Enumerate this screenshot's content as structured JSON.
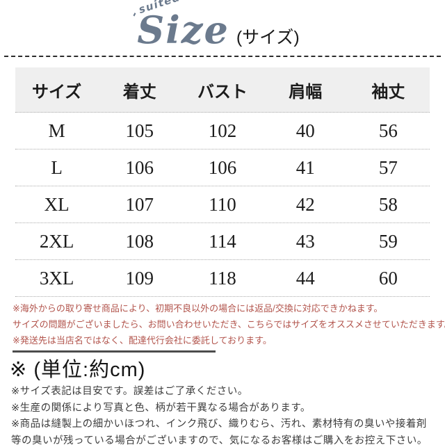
{
  "header": {
    "decoration": {
      "left_tick": "-",
      "word": "suited",
      "right_tick": "/"
    },
    "title": "Size",
    "subtitle": "(サイズ)",
    "title_color": "#6b7a8d"
  },
  "size_table": {
    "header_background": "#efefef",
    "columns": [
      "サイズ",
      "着丈",
      "バスト",
      "肩幅",
      "袖丈"
    ],
    "rows": [
      {
        "size": "M",
        "values": [
          "105",
          "102",
          "40",
          "56"
        ]
      },
      {
        "size": "L",
        "values": [
          "106",
          "106",
          "41",
          "57"
        ]
      },
      {
        "size": "XL",
        "values": [
          "107",
          "110",
          "42",
          "58"
        ]
      },
      {
        "size": "2XL",
        "values": [
          "108",
          "114",
          "43",
          "59"
        ]
      },
      {
        "size": "3XL",
        "values": [
          "109",
          "118",
          "44",
          "60"
        ]
      }
    ]
  },
  "red_notices": {
    "color": "#b2544c",
    "lines": [
      "※海外からの取り寄せ商品により、初期不良以外の場合には返品/交換に対応できかねます。",
      "サイズの問題がございましたら、お問い合わせいただき、こちらではサイズをオススメさせていただきます。",
      "※発送先は当店名ではなく、配達代行会社に委託しております。"
    ]
  },
  "unit_heading": "※ (単位:約cm)",
  "gray_notices": {
    "lines": [
      "※サイズ表記は目安です。誤差はご了承ください。",
      "※生産の関係により写真と色、柄が若干異なる場合があります。",
      "※商品は縫製上の細かいほつれ、インク飛び、織りむら、汚れ、素材特有の臭いや接着剤",
      "等の臭いが残っている場合がございますので、気になるお客様はご購入をお控え下さい。"
    ]
  }
}
